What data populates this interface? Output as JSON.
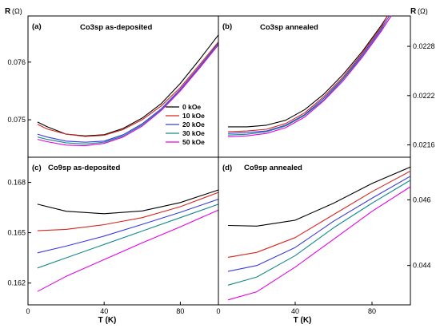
{
  "figure": {
    "left_axis_label": "R",
    "right_axis_label": "R",
    "unit_label": "(Ω)",
    "x_axis_label": "T (K)"
  },
  "legend": [
    "0 kOe",
    "10 kOe",
    "20 kOe",
    "30 kOe",
    "50 kOe"
  ],
  "series_colors": [
    "#000000",
    "#d7261e",
    "#3a3ae0",
    "#148a8a",
    "#e600e6"
  ],
  "chart_data": [
    {
      "type": "line",
      "panel_label": "(a)",
      "title": "Co3sp as-deposited",
      "xlabel": "",
      "ylabel": "R (Ω)",
      "xlim": [
        0,
        100
      ],
      "ylim": [
        0.07435,
        0.0768
      ],
      "xticks": [],
      "yticks": [
        0.075,
        0.076
      ],
      "ytick_labels": [
        "0.075",
        "0.076"
      ],
      "series": [
        {
          "name": "0 kOe",
          "points": [
            [
              5,
              0.07496
            ],
            [
              10,
              0.07488
            ],
            [
              20,
              0.07475
            ],
            [
              30,
              0.07472
            ],
            [
              40,
              0.07474
            ],
            [
              50,
              0.07485
            ],
            [
              60,
              0.07503
            ],
            [
              70,
              0.07528
            ],
            [
              80,
              0.07563
            ],
            [
              90,
              0.07604
            ],
            [
              100,
              0.07647
            ]
          ]
        },
        {
          "name": "10 kOe",
          "points": [
            [
              5,
              0.07492
            ],
            [
              10,
              0.07484
            ],
            [
              20,
              0.07475
            ],
            [
              30,
              0.07471
            ],
            [
              40,
              0.07473
            ],
            [
              50,
              0.07483
            ],
            [
              60,
              0.075
            ],
            [
              70,
              0.07524
            ],
            [
              80,
              0.07556
            ],
            [
              90,
              0.07595
            ],
            [
              100,
              0.07635
            ]
          ]
        },
        {
          "name": "20 kOe",
          "points": [
            [
              5,
              0.07475
            ],
            [
              10,
              0.0747
            ],
            [
              20,
              0.07463
            ],
            [
              30,
              0.07461
            ],
            [
              40,
              0.07463
            ],
            [
              50,
              0.07474
            ],
            [
              60,
              0.07493
            ],
            [
              70,
              0.07519
            ],
            [
              80,
              0.07553
            ],
            [
              90,
              0.07592
            ],
            [
              100,
              0.07633
            ]
          ]
        },
        {
          "name": "30 kOe",
          "points": [
            [
              5,
              0.0747
            ],
            [
              10,
              0.07466
            ],
            [
              20,
              0.0746
            ],
            [
              30,
              0.07458
            ],
            [
              40,
              0.07461
            ],
            [
              50,
              0.07472
            ],
            [
              60,
              0.07491
            ],
            [
              70,
              0.07517
            ],
            [
              80,
              0.07551
            ],
            [
              90,
              0.0759
            ],
            [
              100,
              0.07632
            ]
          ]
        },
        {
          "name": "50 kOe",
          "points": [
            [
              5,
              0.07466
            ],
            [
              10,
              0.07462
            ],
            [
              20,
              0.07456
            ],
            [
              30,
              0.07455
            ],
            [
              40,
              0.07459
            ],
            [
              50,
              0.0747
            ],
            [
              60,
              0.07489
            ],
            [
              70,
              0.07516
            ],
            [
              80,
              0.0755
            ],
            [
              90,
              0.07589
            ],
            [
              100,
              0.0763
            ]
          ]
        }
      ]
    },
    {
      "type": "line",
      "panel_label": "(b)",
      "title": "Co3sp annealed",
      "xlabel": "",
      "ylabel": "R (Ω)",
      "xlim": [
        0,
        100
      ],
      "ylim": [
        0.02145,
        0.02317
      ],
      "xticks": [],
      "yticks": [
        0.0216,
        0.0222,
        0.0228
      ],
      "ytick_labels": [
        "0.0216",
        "0.0222",
        "0.0228"
      ],
      "series": [
        {
          "name": "0 kOe",
          "points": [
            [
              5,
              0.02182
            ],
            [
              15,
              0.02182
            ],
            [
              25,
              0.02184
            ],
            [
              35,
              0.0219
            ],
            [
              45,
              0.02203
            ],
            [
              55,
              0.02222
            ],
            [
              65,
              0.02246
            ],
            [
              75,
              0.02274
            ],
            [
              85,
              0.02306
            ],
            [
              88,
              0.02317
            ]
          ]
        },
        {
          "name": "10 kOe",
          "points": [
            [
              5,
              0.02176
            ],
            [
              15,
              0.02177
            ],
            [
              25,
              0.02179
            ],
            [
              35,
              0.02186
            ],
            [
              45,
              0.02199
            ],
            [
              55,
              0.02219
            ],
            [
              65,
              0.02243
            ],
            [
              75,
              0.02272
            ],
            [
              85,
              0.02304
            ],
            [
              88,
              0.02317
            ]
          ]
        },
        {
          "name": "20 kOe",
          "points": [
            [
              5,
              0.02174
            ],
            [
              15,
              0.02175
            ],
            [
              25,
              0.02177
            ],
            [
              35,
              0.02184
            ],
            [
              45,
              0.02197
            ],
            [
              55,
              0.02217
            ],
            [
              65,
              0.02241
            ],
            [
              75,
              0.0227
            ],
            [
              85,
              0.02302
            ],
            [
              89,
              0.02317
            ]
          ]
        },
        {
          "name": "30 kOe",
          "points": [
            [
              5,
              0.02172
            ],
            [
              15,
              0.02173
            ],
            [
              25,
              0.02176
            ],
            [
              35,
              0.02183
            ],
            [
              45,
              0.02196
            ],
            [
              55,
              0.02215
            ],
            [
              65,
              0.0224
            ],
            [
              75,
              0.02268
            ],
            [
              85,
              0.023
            ],
            [
              90,
              0.02317
            ]
          ]
        },
        {
          "name": "50 kOe",
          "points": [
            [
              5,
              0.0217
            ],
            [
              15,
              0.02171
            ],
            [
              25,
              0.02174
            ],
            [
              35,
              0.02181
            ],
            [
              45,
              0.02194
            ],
            [
              55,
              0.02214
            ],
            [
              65,
              0.02238
            ],
            [
              75,
              0.02267
            ],
            [
              85,
              0.02299
            ],
            [
              90,
              0.02317
            ]
          ]
        }
      ]
    },
    {
      "type": "line",
      "panel_label": "(c)",
      "title": "Co9sp as-deposited",
      "xlabel": "T (K)",
      "ylabel": "R (Ω)",
      "xlim": [
        0,
        100
      ],
      "ylim": [
        0.1607,
        0.1695
      ],
      "xticks": [
        0,
        40,
        80
      ],
      "yticks": [
        0.162,
        0.165,
        0.168
      ],
      "ytick_labels": [
        "0.162",
        "0.165",
        "0.168"
      ],
      "series": [
        {
          "name": "0 kOe",
          "points": [
            [
              5,
              0.1667
            ],
            [
              20,
              0.16628
            ],
            [
              40,
              0.16613
            ],
            [
              60,
              0.1663
            ],
            [
              80,
              0.1668
            ],
            [
              100,
              0.16755
            ]
          ]
        },
        {
          "name": "10 kOe",
          "points": [
            [
              5,
              0.16512
            ],
            [
              20,
              0.1652
            ],
            [
              40,
              0.16548
            ],
            [
              60,
              0.1659
            ],
            [
              80,
              0.16655
            ],
            [
              100,
              0.1674
            ]
          ]
        },
        {
          "name": "20 kOe",
          "points": [
            [
              5,
              0.1638
            ],
            [
              20,
              0.1642
            ],
            [
              40,
              0.1648
            ],
            [
              60,
              0.1655
            ],
            [
              80,
              0.16622
            ],
            [
              100,
              0.167
            ]
          ]
        },
        {
          "name": "30 kOe",
          "points": [
            [
              5,
              0.1629
            ],
            [
              20,
              0.1635
            ],
            [
              40,
              0.1643
            ],
            [
              60,
              0.1651
            ],
            [
              80,
              0.1659
            ],
            [
              100,
              0.1667
            ]
          ]
        },
        {
          "name": "50 kOe",
          "points": [
            [
              5,
              0.1615
            ],
            [
              20,
              0.1624
            ],
            [
              40,
              0.1634
            ],
            [
              60,
              0.1644
            ],
            [
              80,
              0.16535
            ],
            [
              100,
              0.16635
            ]
          ]
        }
      ]
    },
    {
      "type": "line",
      "panel_label": "(d)",
      "title": "Co9sp annealed",
      "xlabel": "T (K)",
      "ylabel": "R (Ω)",
      "xlim": [
        0,
        100
      ],
      "ylim": [
        0.0428,
        0.0473
      ],
      "xticks": [
        0,
        40,
        80
      ],
      "yticks": [
        0.044,
        0.046
      ],
      "ytick_labels": [
        "0.044",
        "0.046"
      ],
      "series": [
        {
          "name": "0 kOe",
          "points": [
            [
              5,
              0.04522
            ],
            [
              20,
              0.0452
            ],
            [
              40,
              0.04538
            ],
            [
              60,
              0.0459
            ],
            [
              80,
              0.0465
            ],
            [
              100,
              0.047
            ]
          ]
        },
        {
          "name": "10 kOe",
          "points": [
            [
              5,
              0.04425
            ],
            [
              20,
              0.0444
            ],
            [
              40,
              0.04485
            ],
            [
              60,
              0.04555
            ],
            [
              80,
              0.04625
            ],
            [
              100,
              0.04688
            ]
          ]
        },
        {
          "name": "20 kOe",
          "points": [
            [
              5,
              0.04382
            ],
            [
              20,
              0.044
            ],
            [
              40,
              0.04455
            ],
            [
              60,
              0.04535
            ],
            [
              80,
              0.04605
            ],
            [
              100,
              0.04672
            ]
          ]
        },
        {
          "name": "30 kOe",
          "points": [
            [
              5,
              0.0434
            ],
            [
              20,
              0.04365
            ],
            [
              40,
              0.0443
            ],
            [
              60,
              0.04515
            ],
            [
              80,
              0.0459
            ],
            [
              100,
              0.0466
            ]
          ]
        },
        {
          "name": "50 kOe",
          "points": [
            [
              5,
              0.04295
            ],
            [
              20,
              0.0432
            ],
            [
              40,
              0.04395
            ],
            [
              60,
              0.0448
            ],
            [
              80,
              0.04565
            ],
            [
              100,
              0.0464
            ]
          ]
        }
      ]
    }
  ]
}
